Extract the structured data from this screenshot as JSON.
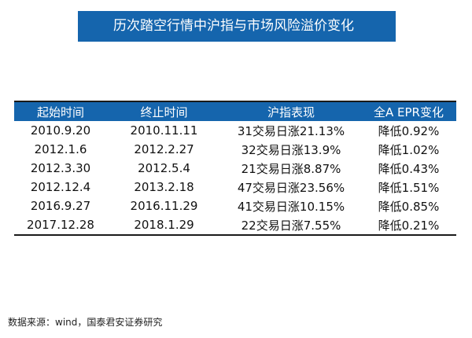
{
  "title": "历次踏空行情中沪指与市场风险溢价变化",
  "table": {
    "headers": [
      "起始时间",
      "终止时间",
      "沪指表现",
      "全A EPR变化"
    ],
    "rows": [
      [
        "2010.9.20",
        "2010.11.11",
        "31交易日涨21.13%",
        "降低0.92%"
      ],
      [
        "2012.1.6",
        "2012.2.27",
        "32交易日涨13.9%",
        "降低1.02%"
      ],
      [
        "2012.3.30",
        "2012.5.4",
        "21交易日涨8.87%",
        "降低0.43%"
      ],
      [
        "2012.12.4",
        "2013.2.18",
        "47交易日涨23.56%",
        "降低1.51%"
      ],
      [
        "2016.9.27",
        "2016.11.29",
        "41交易日涨10.15%",
        "降低0.85%"
      ],
      [
        "2017.12.28",
        "2018.1.29",
        "22交易日涨7.55%",
        "降低0.21%"
      ]
    ]
  },
  "source": "数据来源：wind，国泰君安证券研究",
  "colors": {
    "accent": "#1565ad",
    "rule": "#1a1a1a"
  }
}
